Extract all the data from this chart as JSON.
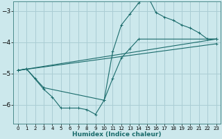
{
  "xlabel": "Humidex (Indice chaleur)",
  "bg_color": "#cce8ec",
  "line_color": "#1a6b6b",
  "grid_color": "#aacdd4",
  "xlim": [
    -0.5,
    23.5
  ],
  "ylim": [
    -6.6,
    -2.7
  ],
  "yticks": [
    -6,
    -5,
    -4,
    -3
  ],
  "xticks": [
    0,
    1,
    2,
    3,
    4,
    5,
    6,
    7,
    8,
    9,
    10,
    11,
    12,
    13,
    14,
    15,
    16,
    17,
    18,
    19,
    20,
    21,
    22,
    23
  ],
  "series": [
    {
      "x": [
        0,
        1,
        2,
        3,
        10,
        11,
        12,
        13,
        14,
        15,
        16,
        17,
        18,
        19,
        20,
        21,
        22,
        23
      ],
      "y": [
        -4.9,
        -4.85,
        -5.15,
        -5.45,
        -5.85,
        -4.3,
        -3.45,
        -3.1,
        -2.75,
        -2.5,
        -3.05,
        -3.2,
        -3.3,
        -3.45,
        -3.55,
        -3.7,
        -3.9,
        -3.9
      ]
    },
    {
      "x": [
        0,
        1,
        3,
        4,
        5,
        6,
        7,
        8,
        9,
        10,
        11,
        12,
        13,
        14,
        22,
        23
      ],
      "y": [
        -4.9,
        -4.85,
        -5.5,
        -5.75,
        -6.1,
        -6.1,
        -6.1,
        -6.15,
        -6.3,
        -5.85,
        -5.15,
        -4.5,
        -4.2,
        -3.9,
        -3.9,
        -3.9
      ]
    },
    {
      "x": [
        0,
        23
      ],
      "y": [
        -4.9,
        -3.9
      ]
    },
    {
      "x": [
        0,
        23
      ],
      "y": [
        -4.9,
        -4.05
      ]
    }
  ]
}
